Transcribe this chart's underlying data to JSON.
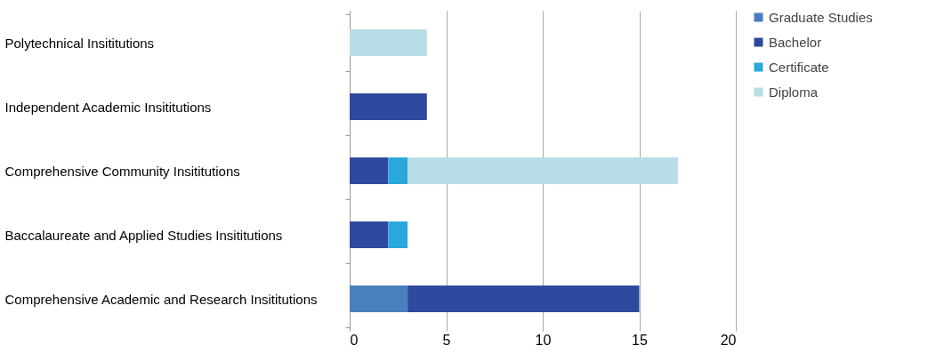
{
  "chart_data": {
    "type": "bar",
    "orientation": "horizontal",
    "stacked": true,
    "categories": [
      "Polytechnical Insititutions",
      "Independent Academic Insititutions",
      "Comprehensive Community Insititutions",
      "Baccalaureate and Applied Studies Insititutions",
      "Comprehensive Academic and Research Insititutions"
    ],
    "series": [
      {
        "name": "Graduate Studies",
        "color": "#4a7fbf",
        "values": [
          0,
          0,
          0,
          0,
          3
        ]
      },
      {
        "name": "Bachelor",
        "color": "#2e4a9e",
        "values": [
          0,
          4,
          2,
          2,
          12
        ]
      },
      {
        "name": "Certificate",
        "color": "#2aa8dc",
        "values": [
          0,
          0,
          1,
          1,
          0
        ]
      },
      {
        "name": "Diploma",
        "color": "#b7dde7",
        "values": [
          4,
          0,
          14,
          0,
          0
        ]
      }
    ],
    "xlim": [
      0,
      20
    ],
    "xticks": [
      0,
      5,
      10,
      15,
      20
    ],
    "grid": "x",
    "legend": "right"
  }
}
